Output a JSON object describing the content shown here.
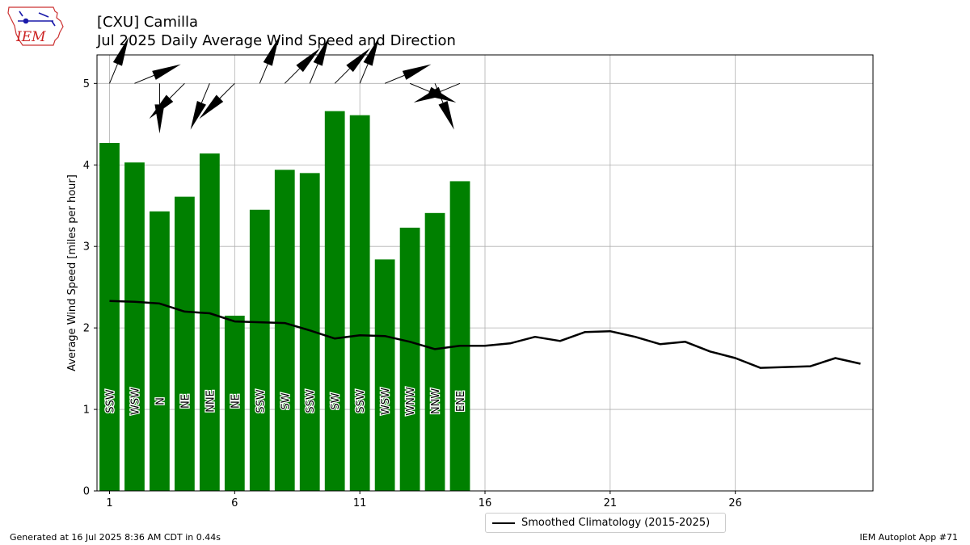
{
  "header": {
    "title_line1": "[CXU] Camilla",
    "title_line2": "Jul 2025 Daily Average Wind Speed and Direction"
  },
  "logo": {
    "text": "IEM",
    "icon": "iowa-state-map-icon"
  },
  "footer": {
    "left": "Generated at 16 Jul 2025 8:36 AM CDT in 0.44s",
    "right": "IEM Autoplot App #71"
  },
  "legend": {
    "label": "Smoothed Climatology (2015-2025)"
  },
  "colors": {
    "bar": "#008000",
    "line": "#000000",
    "grid": "#b0b0b0"
  },
  "chart_data": {
    "type": "bar",
    "title": "[CXU] Camilla",
    "subtitle": "Jul 2025 Daily Average Wind Speed and Direction",
    "xlabel": "",
    "ylabel": "Average Wind Speed [miles per hour]",
    "xlim": [
      0.5,
      31.5
    ],
    "ylim": [
      0,
      5.35
    ],
    "xticks": [
      1,
      6,
      11,
      16,
      21,
      26
    ],
    "yticks": [
      0,
      1,
      2,
      3,
      4,
      5
    ],
    "grid": true,
    "legend_position": "bottom-center",
    "bars": {
      "days": [
        1,
        2,
        3,
        4,
        5,
        6,
        7,
        8,
        9,
        10,
        11,
        12,
        13,
        14,
        15
      ],
      "values": [
        4.27,
        4.03,
        3.43,
        3.61,
        4.14,
        2.15,
        3.45,
        3.94,
        3.9,
        4.66,
        4.61,
        2.84,
        3.23,
        3.41,
        3.8
      ],
      "directions": [
        "SSW",
        "WSW",
        "N",
        "NE",
        "NNE",
        "NE",
        "SSW",
        "SW",
        "SSW",
        "SW",
        "SSW",
        "WSW",
        "WNW",
        "NNW",
        "ENE"
      ]
    },
    "climatology": {
      "name": "Smoothed Climatology (2015-2025)",
      "x": [
        1,
        2,
        3,
        4,
        5,
        6,
        7,
        8,
        9,
        10,
        11,
        12,
        13,
        14,
        15,
        16,
        17,
        18,
        19,
        20,
        21,
        22,
        23,
        24,
        25,
        26,
        27,
        28,
        29,
        30,
        31
      ],
      "values": [
        2.33,
        2.32,
        2.3,
        2.2,
        2.18,
        2.08,
        2.07,
        2.06,
        1.97,
        1.87,
        1.91,
        1.9,
        1.83,
        1.74,
        1.78,
        1.78,
        1.81,
        1.89,
        1.84,
        1.95,
        1.96,
        1.89,
        1.8,
        1.83,
        1.71,
        1.63,
        1.51,
        1.52,
        1.53,
        1.63,
        1.56
      ]
    }
  }
}
